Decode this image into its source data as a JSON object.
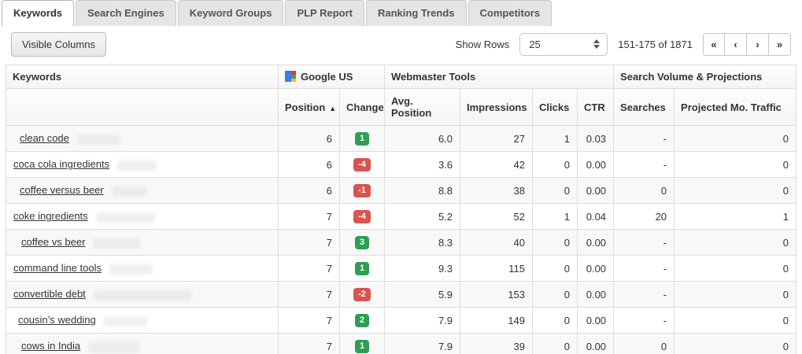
{
  "tabs": [
    {
      "label": "Keywords",
      "active": true
    },
    {
      "label": "Search Engines",
      "active": false
    },
    {
      "label": "Keyword Groups",
      "active": false
    },
    {
      "label": "PLP Report",
      "active": false
    },
    {
      "label": "Ranking Trends",
      "active": false
    },
    {
      "label": "Competitors",
      "active": false
    }
  ],
  "toolbar": {
    "visible_columns_label": "Visible Columns",
    "show_rows_label": "Show Rows",
    "show_rows_value": "25",
    "range_text": "151-175 of 1871",
    "pagination": [
      {
        "name": "first",
        "glyph": "«"
      },
      {
        "name": "prev",
        "glyph": "‹"
      },
      {
        "name": "next",
        "glyph": "›"
      },
      {
        "name": "last",
        "glyph": "»"
      }
    ]
  },
  "table": {
    "groups": [
      {
        "label": "Keywords"
      },
      {
        "label": "Google US",
        "icon": "google-icon"
      },
      {
        "label": "Webmaster Tools"
      },
      {
        "label": "Search Volume & Projections"
      }
    ],
    "columns": [
      "",
      "Position",
      "Change",
      "Avg. Position",
      "Impressions",
      "Clicks",
      "CTR",
      "Searches",
      "Projected Mo. Traffic"
    ],
    "sort_column": "Position",
    "sort_indicator": "▲",
    "rows": [
      {
        "keyword": "clean code",
        "position": "6",
        "change": "1",
        "avg_position": "6.0",
        "impressions": "27",
        "clicks": "1",
        "ctr": "0.03",
        "searches": "-",
        "projected_traffic": "0",
        "indent": 8,
        "redacted_width": 55
      },
      {
        "keyword": "coca cola ingredients",
        "position": "6",
        "change": "-4",
        "avg_position": "3.6",
        "impressions": "42",
        "clicks": "0",
        "ctr": "0.00",
        "searches": "-",
        "projected_traffic": "0",
        "indent": 0,
        "redacted_width": 50
      },
      {
        "keyword": "coffee versus beer",
        "position": "6",
        "change": "-1",
        "avg_position": "8.8",
        "impressions": "38",
        "clicks": "0",
        "ctr": "0.00",
        "searches": "0",
        "projected_traffic": "0",
        "indent": 8,
        "redacted_width": 45
      },
      {
        "keyword": "coke ingredients",
        "position": "7",
        "change": "-4",
        "avg_position": "5.2",
        "impressions": "52",
        "clicks": "1",
        "ctr": "0.04",
        "searches": "20",
        "projected_traffic": "1",
        "indent": 0,
        "redacted_width": 75
      },
      {
        "keyword": "coffee vs beer",
        "position": "7",
        "change": "3",
        "avg_position": "8.3",
        "impressions": "40",
        "clicks": "0",
        "ctr": "0.00",
        "searches": "-",
        "projected_traffic": "0",
        "indent": 10,
        "redacted_width": 60
      },
      {
        "keyword": "command line tools",
        "position": "7",
        "change": "1",
        "avg_position": "9.3",
        "impressions": "115",
        "clicks": "0",
        "ctr": "0.00",
        "searches": "-",
        "projected_traffic": "0",
        "indent": 0,
        "redacted_width": 55
      },
      {
        "keyword": "convertible debt",
        "position": "7",
        "change": "-2",
        "avg_position": "5.9",
        "impressions": "153",
        "clicks": "0",
        "ctr": "0.00",
        "searches": "-",
        "projected_traffic": "0",
        "indent": 0,
        "redacted_width": 125
      },
      {
        "keyword": "cousin’s wedding",
        "position": "7",
        "change": "2",
        "avg_position": "7.9",
        "impressions": "149",
        "clicks": "0",
        "ctr": "0.00",
        "searches": "-",
        "projected_traffic": "0",
        "indent": 6,
        "redacted_width": 55
      },
      {
        "keyword": "cows in India",
        "position": "7",
        "change": "1",
        "avg_position": "7.9",
        "impressions": "39",
        "clicks": "0",
        "ctr": "0.00",
        "searches": "0",
        "projected_traffic": "0",
        "indent": 10,
        "redacted_width": 65
      }
    ]
  },
  "colors": {
    "positive_change": "#2e9e53",
    "negative_change": "#d9534f",
    "google_blue": "#3a7cec",
    "google_red": "#e23b2e",
    "google_yellow": "#fbbc05",
    "google_green": "#34a853"
  }
}
